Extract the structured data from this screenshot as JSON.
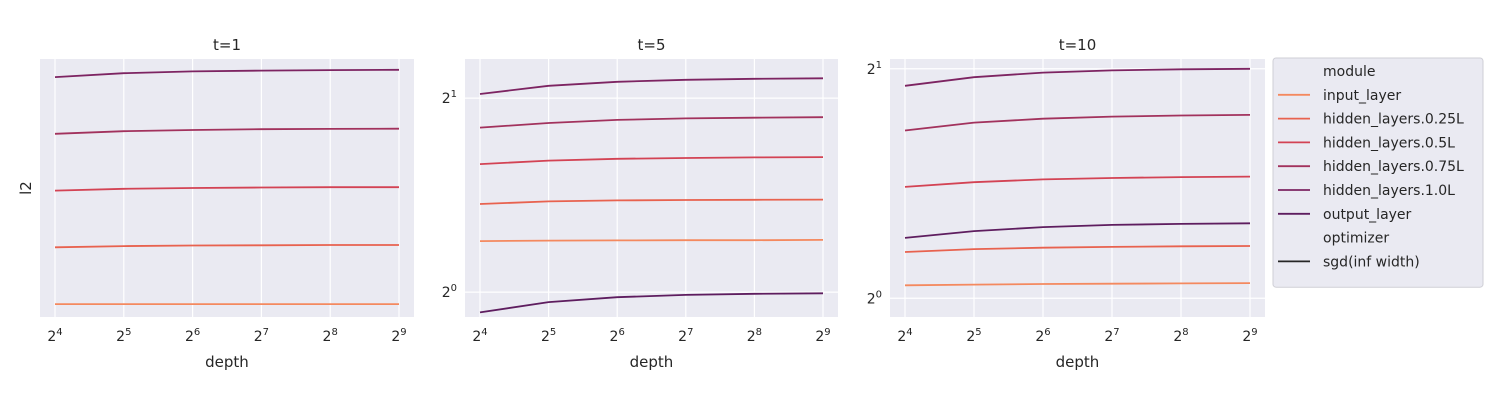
{
  "chart_data": [
    {
      "type": "line",
      "title": "t=1",
      "xlabel": "depth",
      "ylabel": "l2",
      "xscale": "log2",
      "x": [
        16,
        32,
        64,
        128,
        256,
        512
      ],
      "xtick_labels": [
        [
          "2",
          "4"
        ],
        [
          "2",
          "5"
        ],
        [
          "2",
          "6"
        ],
        [
          "2",
          "7"
        ],
        [
          "2",
          "8"
        ],
        [
          "2",
          "9"
        ]
      ],
      "ylim": [
        0,
        1
      ],
      "yticks": [],
      "series": [
        {
          "name": "input_layer",
          "color": "#f4895f",
          "values": [
            0.05,
            0.05,
            0.05,
            0.05,
            0.05,
            0.05
          ]
        },
        {
          "name": "hidden_layers.0.25L",
          "color": "#e8624f",
          "values": [
            0.27,
            0.275,
            0.277,
            0.278,
            0.279,
            0.279
          ]
        },
        {
          "name": "hidden_layers.0.5L",
          "color": "#d34354",
          "values": [
            0.49,
            0.497,
            0.5,
            0.502,
            0.503,
            0.503
          ]
        },
        {
          "name": "hidden_layers.0.75L",
          "color": "#a2325d",
          "values": [
            0.71,
            0.72,
            0.725,
            0.728,
            0.729,
            0.73
          ]
        },
        {
          "name": "hidden_layers.1.0L",
          "color": "#7d2462",
          "values": [
            0.93,
            0.945,
            0.952,
            0.955,
            0.957,
            0.958
          ]
        }
      ]
    },
    {
      "type": "line",
      "title": "t=5",
      "xlabel": "depth",
      "ylabel": "",
      "xscale": "log2",
      "yscale": "log2",
      "x": [
        16,
        32,
        64,
        128,
        256,
        512
      ],
      "xtick_labels": [
        [
          "2",
          "4"
        ],
        [
          "2",
          "5"
        ],
        [
          "2",
          "6"
        ],
        [
          "2",
          "7"
        ],
        [
          "2",
          "8"
        ],
        [
          "2",
          "9"
        ]
      ],
      "ylim": [
        0.915,
        2.3
      ],
      "yticks": [
        1,
        2
      ],
      "ytick_labels": [
        [
          "2",
          "0"
        ],
        [
          "2",
          "1"
        ]
      ],
      "series": [
        {
          "name": "input_layer",
          "color": "#f4895f",
          "values": [
            1.2,
            1.202,
            1.203,
            1.204,
            1.204,
            1.205
          ]
        },
        {
          "name": "hidden_layers.0.25L",
          "color": "#e8624f",
          "values": [
            1.37,
            1.383,
            1.388,
            1.39,
            1.391,
            1.392
          ]
        },
        {
          "name": "hidden_layers.0.5L",
          "color": "#d34354",
          "values": [
            1.58,
            1.6,
            1.61,
            1.615,
            1.618,
            1.62
          ]
        },
        {
          "name": "hidden_layers.0.75L",
          "color": "#a2325d",
          "values": [
            1.8,
            1.83,
            1.85,
            1.86,
            1.865,
            1.868
          ]
        },
        {
          "name": "hidden_layers.1.0L",
          "color": "#7d2462",
          "values": [
            2.03,
            2.09,
            2.12,
            2.135,
            2.143,
            2.147
          ]
        },
        {
          "name": "output_layer",
          "color": "#5e1d5f",
          "values": [
            0.93,
            0.965,
            0.982,
            0.99,
            0.994,
            0.996
          ]
        }
      ]
    },
    {
      "type": "line",
      "title": "t=10",
      "xlabel": "depth",
      "ylabel": "",
      "xscale": "log2",
      "yscale": "log2",
      "x": [
        16,
        32,
        64,
        128,
        256,
        512
      ],
      "xtick_labels": [
        [
          "2",
          "4"
        ],
        [
          "2",
          "5"
        ],
        [
          "2",
          "6"
        ],
        [
          "2",
          "7"
        ],
        [
          "2",
          "8"
        ],
        [
          "2",
          "9"
        ]
      ],
      "ylim": [
        0.945,
        2.06
      ],
      "yticks": [
        1,
        2
      ],
      "ytick_labels": [
        [
          "2",
          "0"
        ],
        [
          "2",
          "1"
        ]
      ],
      "series": [
        {
          "name": "input_layer",
          "color": "#f4895f",
          "values": [
            1.04,
            1.042,
            1.044,
            1.045,
            1.046,
            1.047
          ]
        },
        {
          "name": "hidden_layers.0.25L",
          "color": "#e8624f",
          "values": [
            1.15,
            1.16,
            1.165,
            1.168,
            1.17,
            1.171
          ]
        },
        {
          "name": "hidden_layers.0.5L",
          "color": "#d34354",
          "values": [
            1.4,
            1.42,
            1.432,
            1.438,
            1.442,
            1.444
          ]
        },
        {
          "name": "hidden_layers.0.75L",
          "color": "#a2325d",
          "values": [
            1.66,
            1.7,
            1.72,
            1.731,
            1.737,
            1.74
          ]
        },
        {
          "name": "hidden_layers.1.0L",
          "color": "#7d2462",
          "values": [
            1.9,
            1.95,
            1.977,
            1.99,
            1.997,
            2.0
          ]
        },
        {
          "name": "output_layer",
          "color": "#5e1d5f",
          "values": [
            1.2,
            1.225,
            1.24,
            1.248,
            1.252,
            1.254
          ]
        }
      ]
    }
  ],
  "legend": {
    "placement": "right",
    "entries": [
      {
        "label": "module",
        "kind": "header",
        "color": ""
      },
      {
        "label": "input_layer",
        "kind": "line",
        "color": "#f4895f"
      },
      {
        "label": "hidden_layers.0.25L",
        "kind": "line",
        "color": "#e8624f"
      },
      {
        "label": "hidden_layers.0.5L",
        "kind": "line",
        "color": "#d34354"
      },
      {
        "label": "hidden_layers.0.75L",
        "kind": "line",
        "color": "#a2325d"
      },
      {
        "label": "hidden_layers.1.0L",
        "kind": "line",
        "color": "#7d2462"
      },
      {
        "label": "output_layer",
        "kind": "line",
        "color": "#5e1d5f"
      },
      {
        "label": "optimizer",
        "kind": "header",
        "color": ""
      },
      {
        "label": "sgd(inf width)",
        "kind": "line",
        "color": "#262626"
      }
    ]
  }
}
